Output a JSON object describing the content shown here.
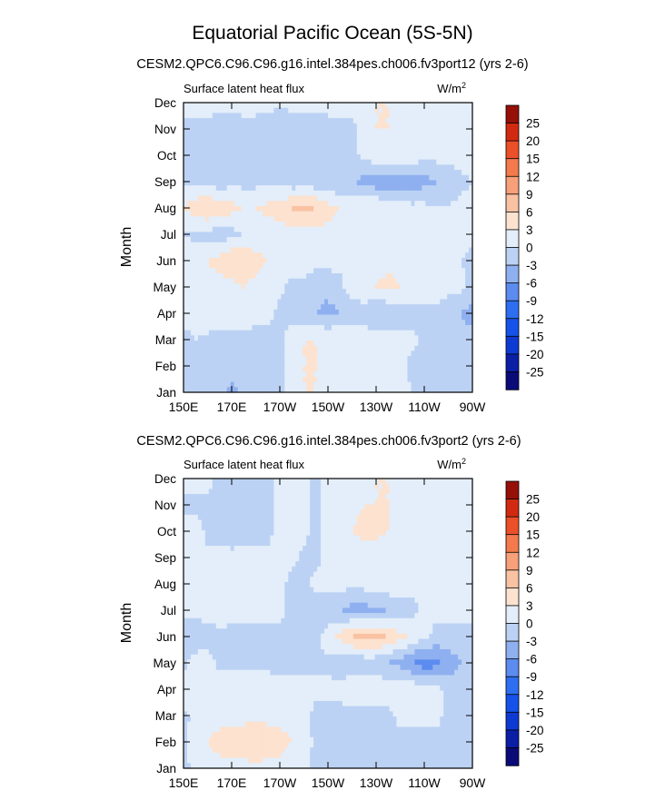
{
  "title": "Equatorial Pacific Ocean (5S-5N)",
  "colors": {
    "levels": [
      -25,
      -20,
      -15,
      -12,
      -9,
      -6,
      -3,
      0,
      3,
      6,
      9,
      12,
      15,
      20,
      25
    ],
    "fills": [
      "#0a0a78",
      "#0a1ea6",
      "#0d3ad2",
      "#1452ea",
      "#2e6ef2",
      "#5c8cf0",
      "#8fb0f0",
      "#bcd2f4",
      "#e3eefa",
      "#fce2cf",
      "#f9c2a2",
      "#f7a07a",
      "#f47a4e",
      "#ec5028",
      "#d22a10",
      "#961008"
    ],
    "frame": "#000000"
  },
  "panels": [
    {
      "subtitle": "CESM2.QPC6.C96.C96.g16.intel.384pes.ch006.fv3port12 (yrs 2-6)",
      "left_label": "Surface latent heat flux",
      "units_base": "W/m",
      "units_exp": "2",
      "ylabel": "Month"
    },
    {
      "subtitle": "CESM2.QPC6.C96.C96.g16.intel.384pes.ch006.fv3port2 (yrs 2-6)",
      "left_label": "Surface latent heat flux",
      "units_base": "W/m",
      "units_exp": "2",
      "ylabel": "Month"
    }
  ],
  "chart_data": [
    {
      "type": "heatmap",
      "title": "CESM2.QPC6.C96.C96.g16.intel.384pes.ch006.fv3port12 (yrs 2-6)",
      "variable": "Surface latent heat flux",
      "units": "W/m2",
      "xlabel": "",
      "ylabel": "Month",
      "x_ticks": [
        "150E",
        "170E",
        "170W",
        "150W",
        "130W",
        "110W",
        "90W"
      ],
      "y_ticks": [
        "Jan",
        "Feb",
        "Mar",
        "Apr",
        "May",
        "Jun",
        "Jul",
        "Aug",
        "Sep",
        "Oct",
        "Nov",
        "Dec"
      ],
      "colorbar_labels": [
        "25",
        "20",
        "15",
        "12",
        "9",
        "6",
        "3",
        "0",
        "-3",
        "-6",
        "-9",
        "-12",
        "-15",
        "-20",
        "-25"
      ],
      "xlim": [
        150,
        270
      ],
      "ylim": [
        1,
        12
      ],
      "x": [
        150,
        155,
        160,
        165,
        170,
        175,
        180,
        185,
        190,
        195,
        200,
        205,
        210,
        215,
        220,
        225,
        230,
        235,
        240,
        245,
        250,
        255,
        260,
        265,
        270
      ],
      "y": [
        1,
        2,
        3,
        4,
        5,
        6,
        7,
        8,
        9,
        10,
        11,
        12
      ],
      "z": [
        [
          0,
          -2,
          -3,
          -2,
          -4,
          -2,
          -1,
          -2,
          -1,
          2,
          3,
          3,
          2,
          1,
          1,
          2,
          2,
          1,
          1,
          0,
          -1,
          -2,
          -3,
          -2,
          -1
        ],
        [
          -1,
          -1,
          -2,
          -1,
          -2,
          -2,
          -2,
          -2,
          -1,
          2,
          3,
          3,
          2,
          2,
          2,
          2,
          2,
          1,
          1,
          -1,
          -2,
          -3,
          -2,
          -1,
          -1
        ],
        [
          -1,
          0,
          -1,
          -1,
          -1,
          -1,
          -1,
          -1,
          -1,
          2,
          3,
          3,
          3,
          3,
          3,
          2,
          2,
          2,
          1,
          1,
          -1,
          -1,
          -2,
          -2,
          -2
        ],
        [
          1,
          2,
          3,
          2,
          2,
          2,
          1,
          1,
          -1,
          -1,
          -2,
          -3,
          -4,
          -3,
          -2,
          -2,
          -3,
          -3,
          -2,
          -2,
          -1,
          -1,
          -2,
          -3,
          -4
        ],
        [
          2,
          3,
          2,
          2,
          2,
          3,
          2,
          1,
          1,
          -1,
          -1,
          -2,
          -2,
          -1,
          2,
          3,
          3,
          4,
          3,
          3,
          2,
          2,
          1,
          1,
          -1
        ],
        [
          2,
          2,
          3,
          4,
          6,
          6,
          4,
          3,
          2,
          2,
          2,
          1,
          1,
          1,
          2,
          2,
          2,
          2,
          2,
          2,
          2,
          1,
          1,
          0,
          -1
        ],
        [
          0,
          -1,
          -1,
          -2,
          -1,
          0,
          1,
          1,
          1,
          2,
          2,
          2,
          2,
          2,
          1,
          1,
          1,
          1,
          1,
          1,
          1,
          1,
          1,
          1,
          1
        ],
        [
          3,
          5,
          6,
          5,
          4,
          3,
          3,
          4,
          5,
          6,
          7,
          6,
          4,
          3,
          3,
          3,
          3,
          2,
          2,
          1,
          1,
          0,
          0,
          1,
          1
        ],
        [
          -1,
          -1,
          -1,
          -2,
          -1,
          -1,
          -1,
          -1,
          -1,
          -2,
          -2,
          -2,
          -2,
          -3,
          -3,
          -4,
          -5,
          -6,
          -5,
          -5,
          -4,
          -3,
          -2,
          -1,
          0
        ],
        [
          -1,
          -1,
          -2,
          -2,
          -1,
          -1,
          -1,
          -1,
          -1,
          -1,
          -1,
          -1,
          -1,
          -1,
          -1,
          1,
          2,
          3,
          3,
          2,
          1,
          1,
          1,
          2,
          2
        ],
        [
          -1,
          -2,
          -2,
          -3,
          -3,
          -2,
          -1,
          -2,
          -3,
          -2,
          -2,
          -2,
          -1,
          -1,
          -1,
          2,
          3,
          3,
          2,
          1,
          1,
          1,
          1,
          1,
          1
        ],
        [
          2,
          3,
          3,
          2,
          2,
          2,
          1,
          1,
          1,
          1,
          1,
          1,
          1,
          1,
          1,
          2,
          3,
          3,
          2,
          1,
          1,
          1,
          1,
          1,
          1
        ]
      ]
    },
    {
      "type": "heatmap",
      "title": "CESM2.QPC6.C96.C96.g16.intel.384pes.ch006.fv3port2 (yrs 2-6)",
      "variable": "Surface latent heat flux",
      "units": "W/m2",
      "xlabel": "",
      "ylabel": "Month",
      "x_ticks": [
        "150E",
        "170E",
        "170W",
        "150W",
        "130W",
        "110W",
        "90W"
      ],
      "y_ticks": [
        "Jan",
        "Feb",
        "Mar",
        "Apr",
        "May",
        "Jun",
        "Jul",
        "Aug",
        "Sep",
        "Oct",
        "Nov",
        "Dec"
      ],
      "colorbar_labels": [
        "25",
        "20",
        "15",
        "12",
        "9",
        "6",
        "3",
        "0",
        "-3",
        "-6",
        "-9",
        "-12",
        "-15",
        "-20",
        "-25"
      ],
      "xlim": [
        150,
        270
      ],
      "ylim": [
        1,
        12
      ],
      "x": [
        150,
        155,
        160,
        165,
        170,
        175,
        180,
        185,
        190,
        195,
        200,
        205,
        210,
        215,
        220,
        225,
        230,
        235,
        240,
        245,
        250,
        255,
        260,
        265,
        270
      ],
      "y": [
        1,
        2,
        3,
        4,
        5,
        6,
        7,
        8,
        9,
        10,
        11,
        12
      ],
      "z": [
        [
          -1,
          1,
          2,
          2,
          2,
          2,
          2,
          2,
          2,
          1,
          1,
          -1,
          -1,
          -1,
          -1,
          -1,
          -1,
          -1,
          -1,
          -1,
          -1,
          -1,
          -1,
          -1,
          -1
        ],
        [
          -1,
          2,
          3,
          4,
          5,
          5,
          6,
          5,
          4,
          3,
          2,
          -1,
          -1,
          -1,
          -1,
          -1,
          -1,
          -1,
          -1,
          -1,
          -1,
          -1,
          -1,
          -1,
          -1
        ],
        [
          -1,
          1,
          2,
          2,
          2,
          2,
          2,
          2,
          2,
          2,
          1,
          -1,
          -1,
          -1,
          -1,
          -1,
          -1,
          -1,
          1,
          1,
          1,
          1,
          -1,
          -1,
          -1
        ],
        [
          2,
          3,
          3,
          2,
          2,
          2,
          2,
          2,
          1,
          1,
          1,
          1,
          1,
          1,
          2,
          2,
          2,
          2,
          2,
          2,
          1,
          1,
          -1,
          -1,
          -1
        ],
        [
          -1,
          2,
          2,
          -1,
          -1,
          -1,
          -1,
          -1,
          -1,
          -1,
          -1,
          -1,
          -1,
          -2,
          -2,
          -2,
          -2,
          -3,
          -4,
          -6,
          -8,
          -7,
          -5,
          -3,
          -2
        ],
        [
          -2,
          -3,
          -2,
          -1,
          -1,
          -1,
          -1,
          -1,
          -1,
          -1,
          -1,
          -1,
          2,
          4,
          6,
          7,
          7,
          6,
          4,
          2,
          1,
          -1,
          -1,
          -1,
          -1
        ],
        [
          1,
          1,
          2,
          2,
          1,
          1,
          1,
          1,
          1,
          -1,
          -1,
          -2,
          -3,
          -3,
          -4,
          -4,
          -4,
          -3,
          -2,
          -1,
          1,
          1,
          1,
          1,
          1
        ],
        [
          1,
          2,
          2,
          2,
          2,
          2,
          1,
          1,
          1,
          -1,
          -1,
          1,
          1,
          1,
          1,
          1,
          2,
          2,
          2,
          1,
          1,
          1,
          1,
          2,
          3
        ],
        [
          1,
          1,
          1,
          1,
          1,
          1,
          1,
          1,
          1,
          1,
          -1,
          -1,
          1,
          1,
          1,
          1,
          1,
          1,
          1,
          1,
          1,
          1,
          1,
          1,
          1
        ],
        [
          1,
          2,
          -1,
          -1,
          -2,
          -1,
          -1,
          -1,
          1,
          1,
          1,
          -1,
          1,
          2,
          3,
          4,
          4,
          3,
          2,
          2,
          3,
          3,
          2,
          1,
          1
        ],
        [
          -1,
          -1,
          -1,
          -1,
          -1,
          -1,
          -1,
          -1,
          1,
          1,
          1,
          -1,
          1,
          2,
          2,
          3,
          3,
          3,
          2,
          1,
          1,
          1,
          1,
          1,
          1
        ],
        [
          1,
          1,
          1,
          -1,
          -2,
          -2,
          -1,
          -1,
          1,
          1,
          1,
          -1,
          1,
          2,
          2,
          2,
          3,
          3,
          2,
          1,
          1,
          1,
          1,
          1,
          1
        ]
      ]
    }
  ]
}
